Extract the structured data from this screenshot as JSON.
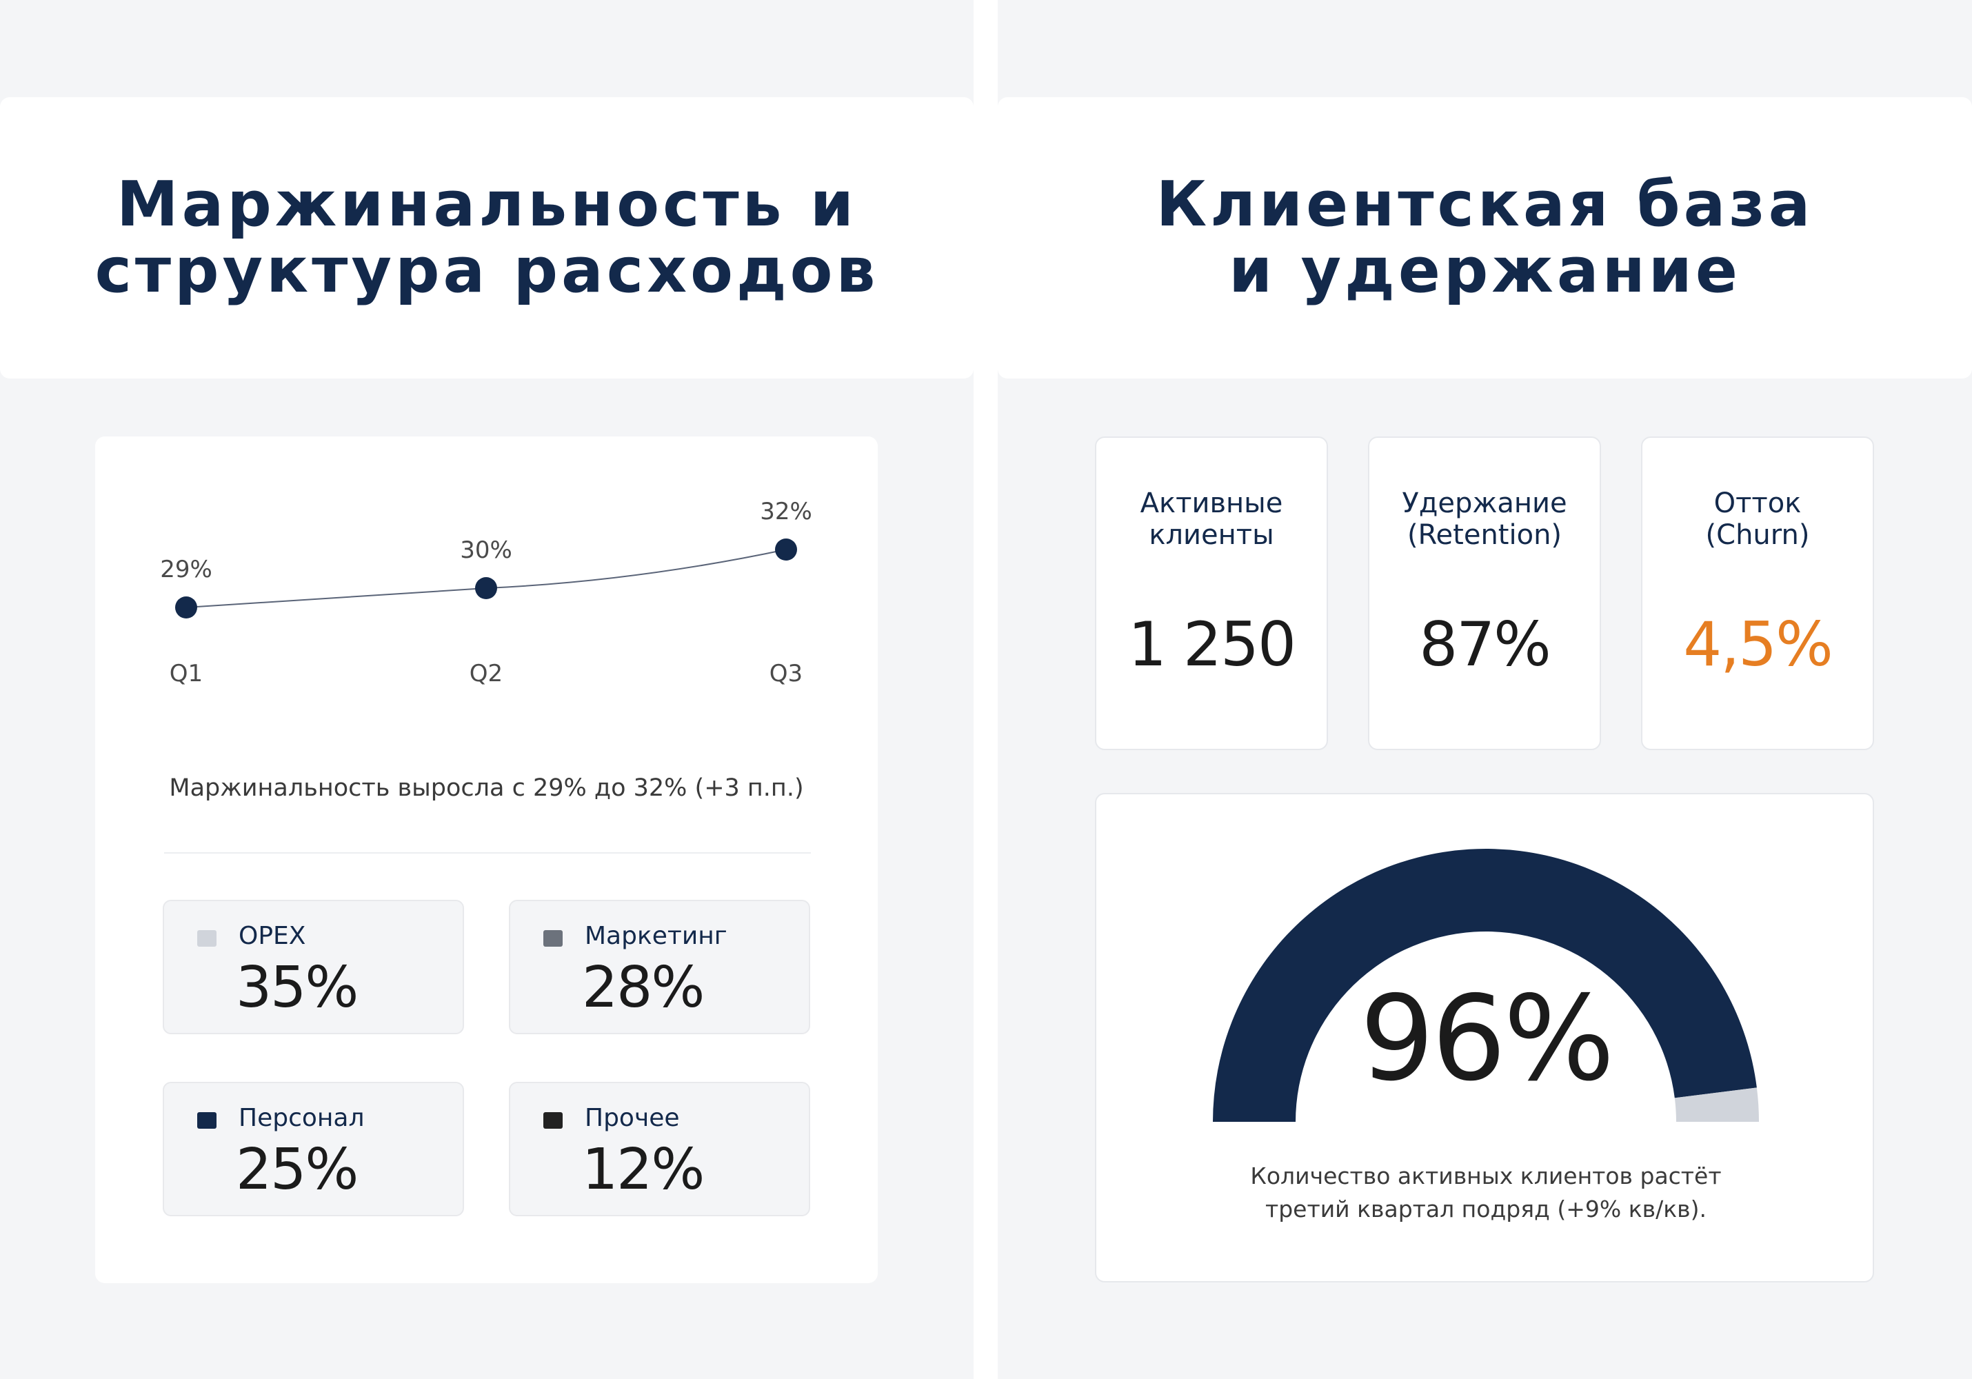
{
  "left": {
    "title": "Маржинальность и структура расходов",
    "caption": "Маржинальность выросла с 29% до 32% (+3 п.п.)",
    "costs": [
      {
        "label": "OPEX",
        "value": "35%",
        "color": "#d0d4db"
      },
      {
        "label": "Маркетинг",
        "value": "28%",
        "color": "#6c727c"
      },
      {
        "label": "Персонал",
        "value": "25%",
        "color": "#13294b"
      },
      {
        "label": "Прочее",
        "value": "12%",
        "color": "#222222"
      }
    ]
  },
  "chart_data": {
    "type": "line",
    "categories": [
      "Q1",
      "Q2",
      "Q3"
    ],
    "series": [
      {
        "values": [
          29,
          30,
          32
        ]
      }
    ],
    "data_labels": [
      "29%",
      "30%",
      "32%"
    ],
    "line_color": "#13294b",
    "grid": false
  },
  "right": {
    "title": "Клиентская база и удержание",
    "kpis": [
      {
        "label_line1": "Активные",
        "label_line2": "клиенты",
        "value": "1 250"
      },
      {
        "label_line1": "Удержание",
        "label_line2": "(Retention)",
        "value": "87%"
      },
      {
        "label_line1": "Отток",
        "label_line2": "(Churn)",
        "value": "4,5%",
        "color": "#e67e22"
      }
    ],
    "gauge": {
      "value": "96%",
      "fraction": 0.96,
      "fill_color": "#13294b",
      "track_color": "#d0d4db",
      "caption": "Количество активных клиентов растёт третий квартал подряд (+9% кв/кв)."
    }
  }
}
